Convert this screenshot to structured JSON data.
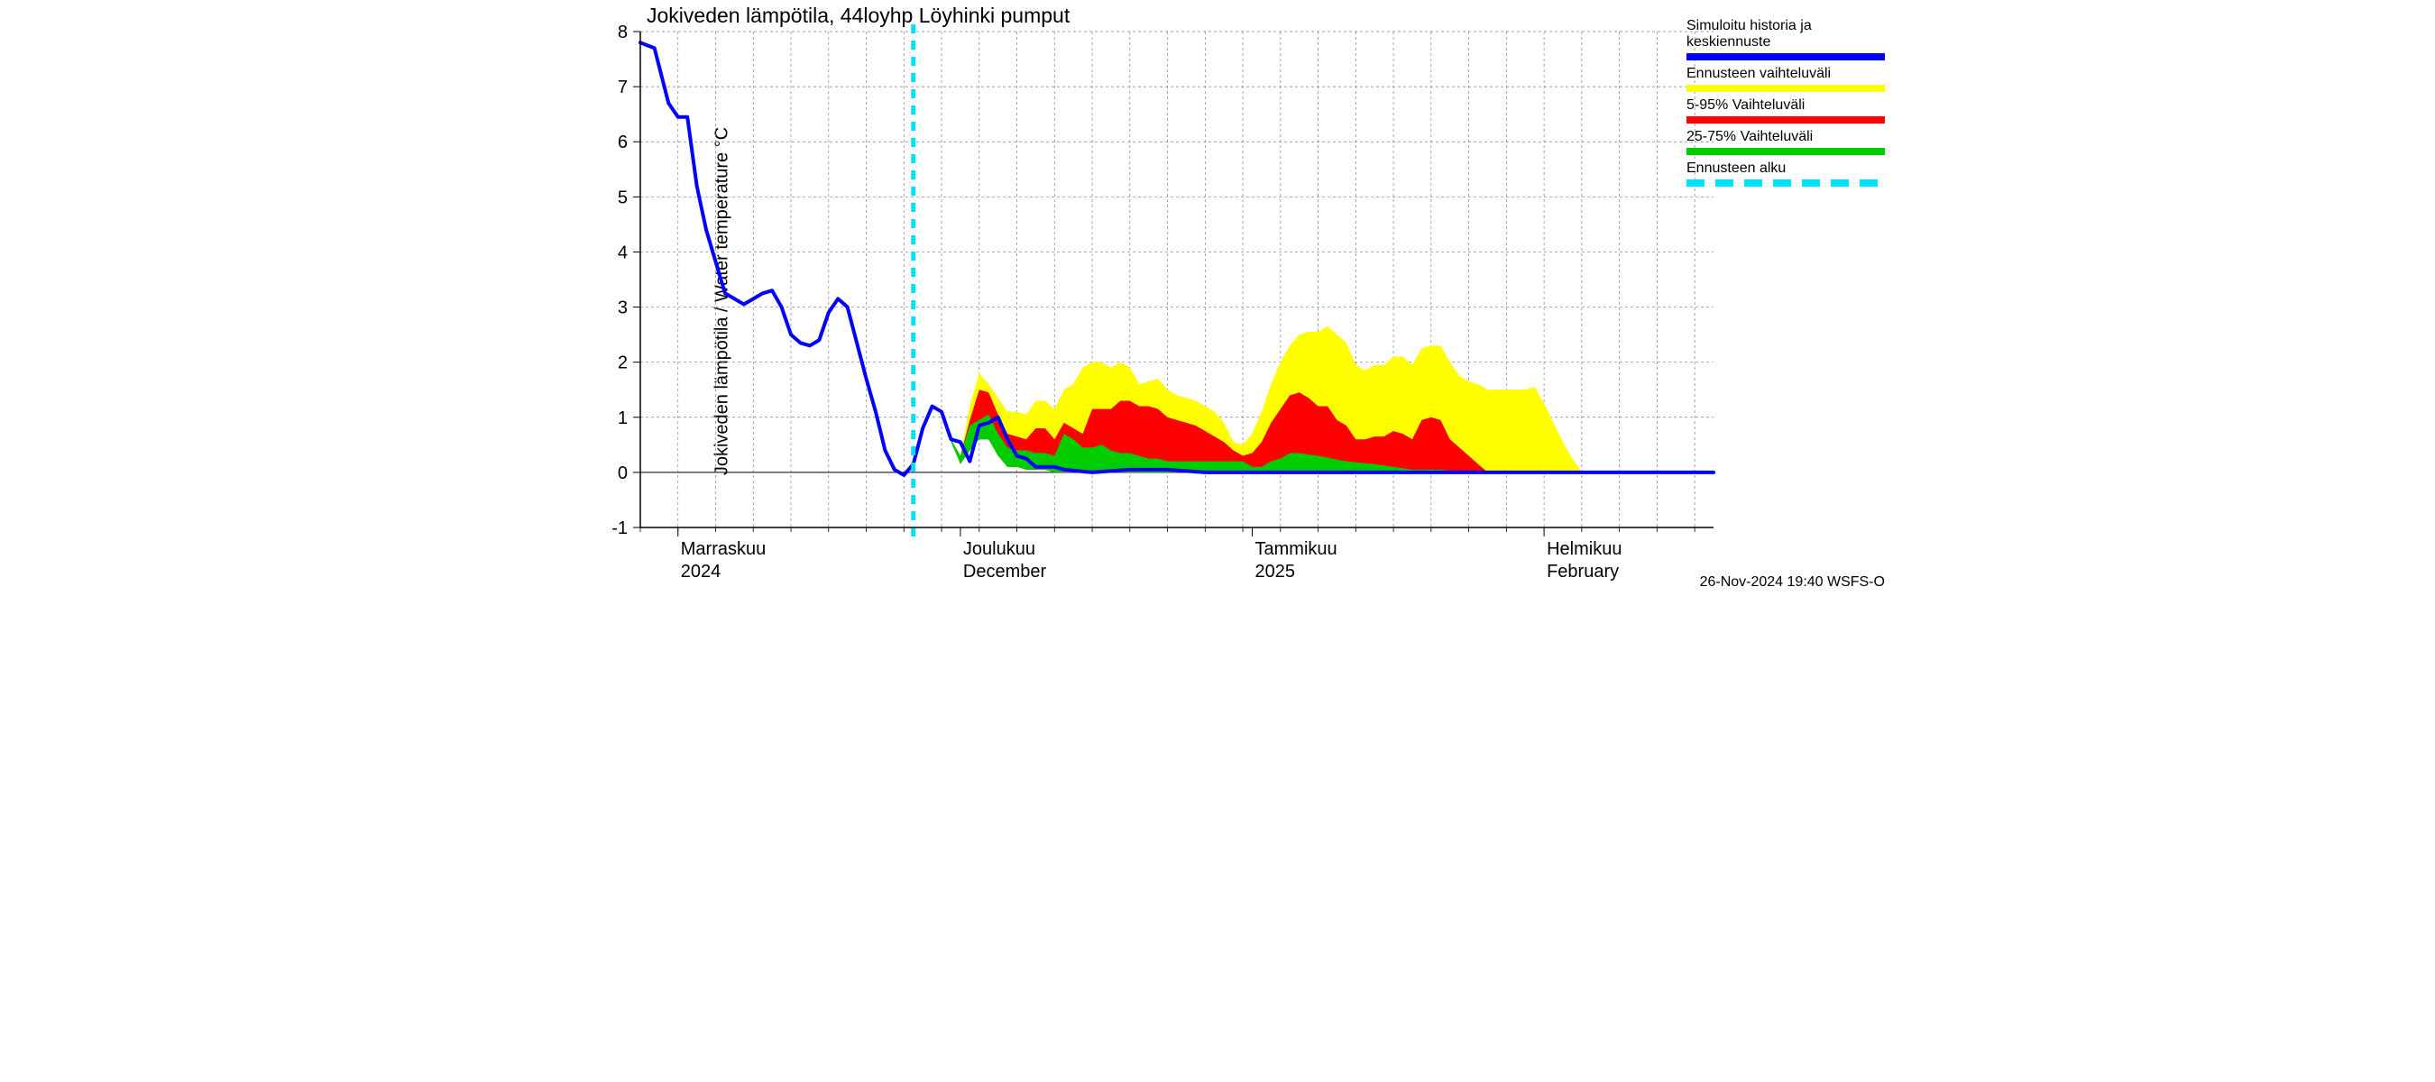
{
  "chart": {
    "type": "line-area",
    "title": "Jokiveden lämpötila, 44loyhp Löyhinki pumput",
    "title_fontsize": 23,
    "ylabel": "Jokiveden lämpötila / Water temperature   °C",
    "ylabel_fontsize": 20,
    "background_color": "#ffffff",
    "plot_background": "#ffffff",
    "grid_color": "#808080",
    "grid_dash": "3,3",
    "axis_color": "#000000",
    "ylim": [
      -1,
      8
    ],
    "ytick_step": 1,
    "yticks": [
      -1,
      0,
      1,
      2,
      3,
      4,
      5,
      6,
      7,
      8
    ],
    "yticklabels": [
      "-1",
      "0",
      "1",
      "2",
      "3",
      "4",
      "5",
      "6",
      "7",
      "8"
    ],
    "tick_fontsize": 20,
    "x_label_fontsize": 20,
    "x_total_days": 114,
    "x_minor_step_days": 4,
    "x_month_starts_days": [
      4,
      34,
      65,
      96
    ],
    "x_month_labels_top": [
      "Marraskuu",
      "Joulukuu",
      "Tammikuu",
      "Helmikuu"
    ],
    "x_month_labels_bottom": [
      "2024",
      "December",
      "2025",
      "February"
    ],
    "forecast_start_day": 29,
    "series": {
      "blue_line": {
        "color": "#0000ff",
        "width": 4,
        "x": [
          0,
          1.5,
          3,
          4,
          5,
          6,
          7,
          9,
          11,
          13,
          14,
          15,
          16,
          17,
          18,
          19,
          20,
          21,
          22,
          23,
          24,
          25,
          26,
          27,
          28,
          29,
          30,
          31,
          32,
          33,
          34,
          35,
          36,
          37,
          38,
          39,
          40,
          41,
          42,
          43,
          44,
          45,
          48,
          52,
          56,
          60,
          65,
          70,
          80,
          90,
          100,
          110,
          114
        ],
        "y": [
          7.8,
          7.7,
          6.7,
          6.45,
          6.45,
          5.2,
          4.4,
          3.25,
          3.05,
          3.25,
          3.3,
          3.0,
          2.5,
          2.35,
          2.3,
          2.4,
          2.9,
          3.15,
          3.0,
          2.35,
          1.7,
          1.1,
          0.4,
          0.05,
          -0.05,
          0.15,
          0.8,
          1.2,
          1.1,
          0.6,
          0.55,
          0.2,
          0.85,
          0.9,
          1.0,
          0.6,
          0.3,
          0.25,
          0.1,
          0.1,
          0.1,
          0.05,
          0.0,
          0.05,
          0.05,
          0.0,
          0.0,
          0.0,
          0.0,
          0.0,
          0.0,
          0.0,
          0.0
        ]
      },
      "green_band": {
        "color": "#00cc00",
        "x": [
          33,
          34,
          35,
          36,
          37,
          38,
          39,
          40,
          41,
          42,
          43,
          44,
          45,
          46,
          47,
          48,
          49,
          50,
          51,
          52,
          53,
          54,
          55,
          56,
          57,
          58,
          59,
          60,
          61,
          62,
          63,
          64,
          65,
          66,
          67,
          68,
          69,
          70,
          72,
          75,
          78,
          80,
          82,
          85,
          88,
          91,
          94,
          97,
          100
        ],
        "y_upper": [
          0.6,
          0.3,
          0.85,
          0.95,
          1.05,
          0.7,
          0.45,
          0.4,
          0.4,
          0.35,
          0.35,
          0.3,
          0.7,
          0.6,
          0.45,
          0.45,
          0.5,
          0.4,
          0.35,
          0.35,
          0.3,
          0.25,
          0.25,
          0.2,
          0.2,
          0.2,
          0.2,
          0.2,
          0.2,
          0.2,
          0.2,
          0.2,
          0.1,
          0.1,
          0.2,
          0.25,
          0.35,
          0.35,
          0.3,
          0.2,
          0.15,
          0.1,
          0.05,
          0.05,
          0.0,
          0.0,
          0.0,
          0.0,
          0.0
        ],
        "y_lower": [
          0.55,
          0.15,
          0.4,
          0.6,
          0.6,
          0.3,
          0.1,
          0.1,
          0.05,
          0.05,
          0.05,
          0.0,
          0.0,
          0.0,
          0.0,
          0.0,
          0.0,
          0.0,
          0.0,
          0.0,
          0.0,
          0.0,
          0.0,
          0.0,
          0.0,
          0.0,
          0.0,
          0.0,
          0.0,
          0.0,
          0.0,
          0.0,
          0.0,
          0.0,
          0.0,
          0.0,
          0.0,
          0.0,
          0.0,
          0.0,
          0.0,
          0.0,
          0.0,
          0.0,
          0.0,
          0.0,
          0.0,
          0.0,
          0.0
        ]
      },
      "red_band": {
        "color": "#ff0000",
        "x": [
          33,
          34,
          35,
          36,
          37,
          38,
          39,
          40,
          41,
          42,
          43,
          44,
          45,
          46,
          47,
          48,
          49,
          50,
          51,
          52,
          53,
          54,
          55,
          56,
          57,
          58,
          59,
          60,
          61,
          62,
          63,
          64,
          65,
          66,
          67,
          68,
          69,
          70,
          71,
          72,
          73,
          74,
          75,
          76,
          77,
          78,
          79,
          80,
          81,
          82,
          83,
          84,
          85,
          86,
          88,
          90,
          92,
          94,
          96,
          98,
          100
        ],
        "y_upper": [
          0.6,
          0.3,
          0.95,
          1.5,
          1.45,
          1.05,
          0.7,
          0.65,
          0.6,
          0.8,
          0.8,
          0.6,
          0.9,
          0.8,
          0.7,
          1.15,
          1.15,
          1.15,
          1.3,
          1.3,
          1.2,
          1.2,
          1.15,
          1.0,
          0.95,
          0.9,
          0.85,
          0.75,
          0.65,
          0.55,
          0.4,
          0.3,
          0.35,
          0.55,
          0.9,
          1.15,
          1.4,
          1.45,
          1.35,
          1.2,
          1.2,
          0.95,
          0.85,
          0.6,
          0.6,
          0.65,
          0.65,
          0.75,
          0.7,
          0.6,
          0.95,
          1.0,
          0.95,
          0.6,
          0.3,
          0.0,
          0.0,
          0.0,
          0.0,
          0.0,
          0.0
        ],
        "y_lower": [
          0.6,
          0.15,
          0.4,
          0.6,
          0.6,
          0.3,
          0.1,
          0.1,
          0.05,
          0.05,
          0.05,
          0.0,
          0.0,
          0.0,
          0.0,
          0.0,
          0.0,
          0.0,
          0.0,
          0.0,
          0.0,
          0.0,
          0.0,
          0.0,
          0.0,
          0.0,
          0.0,
          0.0,
          0.0,
          0.0,
          0.0,
          0.0,
          0.0,
          0.0,
          0.0,
          0.0,
          0.0,
          0.0,
          0.0,
          0.0,
          0.0,
          0.0,
          0.0,
          0.0,
          0.0,
          0.0,
          0.0,
          0.0,
          0.0,
          0.0,
          0.0,
          0.0,
          0.0,
          0.0,
          0.0,
          0.0,
          0.0,
          0.0,
          0.0,
          0.0,
          0.0
        ]
      },
      "yellow_band": {
        "color": "#ffff00",
        "x": [
          33,
          34,
          35,
          36,
          37,
          38,
          39,
          40,
          41,
          42,
          43,
          44,
          45,
          46,
          47,
          48,
          49,
          50,
          51,
          52,
          53,
          54,
          55,
          56,
          57,
          58,
          59,
          60,
          61,
          62,
          63,
          64,
          65,
          66,
          67,
          68,
          69,
          70,
          71,
          72,
          73,
          74,
          75,
          76,
          77,
          78,
          79,
          80,
          81,
          82,
          83,
          84,
          85,
          86,
          87,
          88,
          89,
          90,
          91,
          92,
          93,
          94,
          95,
          96,
          97,
          98,
          99,
          100,
          101,
          102
        ],
        "y_upper": [
          0.6,
          0.3,
          1.2,
          1.8,
          1.6,
          1.35,
          1.1,
          1.1,
          1.05,
          1.3,
          1.3,
          1.15,
          1.5,
          1.6,
          1.9,
          2.0,
          2.0,
          1.9,
          2.0,
          1.9,
          1.6,
          1.65,
          1.7,
          1.5,
          1.4,
          1.35,
          1.3,
          1.2,
          1.1,
          0.9,
          0.55,
          0.5,
          0.7,
          1.1,
          1.6,
          2.0,
          2.3,
          2.5,
          2.55,
          2.55,
          2.65,
          2.5,
          2.35,
          1.95,
          1.85,
          1.95,
          1.95,
          2.1,
          2.1,
          1.95,
          2.25,
          2.3,
          2.3,
          2.0,
          1.75,
          1.65,
          1.6,
          1.5,
          1.5,
          1.5,
          1.5,
          1.5,
          1.55,
          1.25,
          0.9,
          0.55,
          0.25,
          0.0,
          0.0,
          0.0
        ],
        "y_lower": [
          0.6,
          0.15,
          0.4,
          0.6,
          0.6,
          0.3,
          0.1,
          0.1,
          0.05,
          0.05,
          0.05,
          0.0,
          0.0,
          0.0,
          0.0,
          0.0,
          0.0,
          0.0,
          0.0,
          0.0,
          0.0,
          0.0,
          0.0,
          0.0,
          0.0,
          0.0,
          0.0,
          0.0,
          0.0,
          0.0,
          0.0,
          0.0,
          0.0,
          0.0,
          0.0,
          0.0,
          0.0,
          0.0,
          0.0,
          0.0,
          0.0,
          0.0,
          0.0,
          0.0,
          0.0,
          0.0,
          0.0,
          0.0,
          0.0,
          0.0,
          0.0,
          0.0,
          0.0,
          0.0,
          0.0,
          0.0,
          0.0,
          0.0,
          0.0,
          0.0,
          0.0,
          0.0,
          0.0,
          0.0,
          0.0,
          0.0,
          0.0,
          0.0,
          0.0,
          0.0
        ]
      },
      "cyan_forecast_line": {
        "color": "#00e0ff",
        "width": 5,
        "dash": "10,8"
      }
    },
    "legend": {
      "items": [
        {
          "label": "Simuloitu historia ja keskiennuste",
          "color": "#0000ff",
          "type": "line"
        },
        {
          "label": "Ennusteen vaihteluväli",
          "color": "#ffff00",
          "type": "band"
        },
        {
          "label": "5-95% Vaihteluväli",
          "color": "#ff0000",
          "type": "band"
        },
        {
          "label": "25-75% Vaihteluväli",
          "color": "#00cc00",
          "type": "band"
        },
        {
          "label": "Ennusteen alku",
          "color": "#00e0ff",
          "type": "dash"
        }
      ]
    },
    "timestamp": "26-Nov-2024 19:40 WSFS-O"
  }
}
